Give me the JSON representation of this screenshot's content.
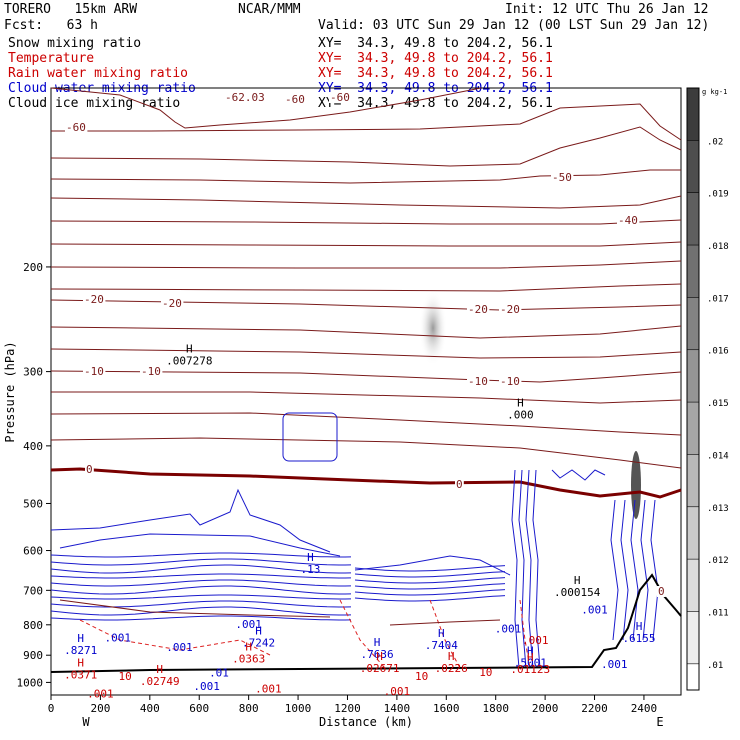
{
  "header": {
    "model": "TORERO   15km ARW",
    "center": "NCAR/MMM",
    "init": "Init: 12 UTC Thu 26 Jan 12",
    "fcst": "Fcst:   63 h",
    "valid": "Valid: 03 UTC Sun 29 Jan 12 (00 LST Sun 29 Jan 12)"
  },
  "legend": [
    {
      "label": "Snow mixing ratio",
      "xy": "XY=  34.3, 49.8 to 204.2, 56.1",
      "color": "#000000"
    },
    {
      "label": "Temperature",
      "xy": "XY=  34.3, 49.8 to 204.2, 56.1",
      "color": "#cc0000"
    },
    {
      "label": "Rain water mixing ratio",
      "xy": "XY=  34.3, 49.8 to 204.2, 56.1",
      "color": "#cc0000"
    },
    {
      "label": "Cloud water mixing ratio",
      "xy": "XY=  34.3, 49.8 to 204.2, 56.1",
      "color": "#0000cc"
    },
    {
      "label": "Cloud ice mixing ratio",
      "xy": "XY=  34.3, 49.8 to 204.2, 56.1",
      "color": "#000000"
    }
  ],
  "colors": {
    "temperature": "#7a1a1a",
    "freezing": "#7a0000",
    "rain": "#dd2222",
    "cloud_water": "#1a1acc",
    "terrain": "#000000"
  },
  "chart_data": {
    "type": "cross-section",
    "xlabel": "Distance (km)",
    "ylabel": "Pressure (hPa)",
    "xlim": [
      0,
      2550
    ],
    "ylim": [
      1050,
      100
    ],
    "y_log": true,
    "xticks": [
      0,
      200,
      400,
      600,
      800,
      1000,
      1200,
      1400,
      1600,
      1800,
      2000,
      2200,
      2400
    ],
    "yticks": [
      200,
      300,
      400,
      500,
      600,
      700,
      800,
      900,
      1000
    ],
    "west_label": "W",
    "east_label": "E",
    "colorbar": {
      "unit": "g kg-1",
      "ticks": [
        ".02",
        ".019",
        ".018",
        ".017",
        ".016",
        ".015",
        ".014",
        ".013",
        ".012",
        ".011",
        ".01"
      ]
    },
    "temperature_contours": [
      {
        "level": -62.03,
        "label": "-62.03"
      },
      {
        "level": -60,
        "label": "-60"
      },
      {
        "level": -50,
        "label": "-50"
      },
      {
        "level": -40,
        "label": "-40"
      },
      {
        "level": -20,
        "label": "-20"
      },
      {
        "level": -10,
        "label": "-10"
      },
      {
        "level": 0,
        "label": "0"
      },
      {
        "level": 10,
        "label": "10"
      }
    ],
    "extrema": [
      {
        "sym": "H",
        "value": ".007278",
        "x": 560,
        "p": 292,
        "color": "#000000"
      },
      {
        "sym": "H",
        "value": ".000",
        "x": 1900,
        "p": 360,
        "color": "#000000"
      },
      {
        "sym": "H",
        "value": ".13",
        "x": 1050,
        "p": 655,
        "color": "#0000cc"
      },
      {
        "sym": "H",
        "value": ".000154",
        "x": 2130,
        "p": 715,
        "color": "#000000"
      },
      {
        "sym": "H",
        "value": ".8271",
        "x": 120,
        "p": 895,
        "color": "#0000cc"
      },
      {
        "sym": "H",
        "value": ".7242",
        "x": 840,
        "p": 870,
        "color": "#0000cc"
      },
      {
        "sym": "H",
        "value": ".7636",
        "x": 1320,
        "p": 910,
        "color": "#0000cc"
      },
      {
        "sym": "H",
        "value": ".7404",
        "x": 1580,
        "p": 878,
        "color": "#0000cc"
      },
      {
        "sym": "H",
        "value": ".5001",
        "x": 1940,
        "p": 940,
        "color": "#0000cc"
      },
      {
        "sym": "H",
        "value": ".6155",
        "x": 2380,
        "p": 855,
        "color": "#0000cc"
      },
      {
        "sym": "H",
        "value": ".0371",
        "x": 120,
        "p": 985,
        "color": "#cc0000"
      },
      {
        "sym": "H",
        "value": ".0363",
        "x": 800,
        "p": 925,
        "color": "#cc0000"
      },
      {
        "sym": "H",
        "value": ".02749",
        "x": 440,
        "p": 1010,
        "color": "#cc0000"
      },
      {
        "sym": "H",
        "value": ".02671",
        "x": 1330,
        "p": 960,
        "color": "#cc0000"
      },
      {
        "sym": "H",
        "value": ".0226",
        "x": 1620,
        "p": 960,
        "color": "#cc0000"
      },
      {
        "sym": "H",
        "value": ".01123",
        "x": 1940,
        "p": 965,
        "color": "#cc0000"
      },
      {
        "sym": "",
        "value": ".001",
        "x": 800,
        "p": 810,
        "color": "#0000cc"
      },
      {
        "sym": "",
        "value": ".001",
        "x": 270,
        "p": 853,
        "color": "#0000cc"
      },
      {
        "sym": "",
        "value": ".001",
        "x": 520,
        "p": 885,
        "color": "#0000cc"
      },
      {
        "sym": "",
        "value": ".001",
        "x": 1850,
        "p": 825,
        "color": "#0000cc"
      },
      {
        "sym": "",
        "value": ".001",
        "x": 2200,
        "p": 765,
        "color": "#0000cc"
      },
      {
        "sym": "",
        "value": ".001",
        "x": 2280,
        "p": 945,
        "color": "#0000cc"
      },
      {
        "sym": "",
        "value": ".001",
        "x": 630,
        "p": 1030,
        "color": "#0000cc"
      },
      {
        "sym": "",
        "value": ".001",
        "x": 1960,
        "p": 862,
        "color": "#cc0000"
      },
      {
        "sym": "",
        "value": ".001",
        "x": 880,
        "p": 1040,
        "color": "#cc0000"
      },
      {
        "sym": "",
        "value": ".001",
        "x": 1400,
        "p": 1050,
        "color": "#cc0000"
      },
      {
        "sym": "",
        "value": ".001",
        "x": 200,
        "p": 1060,
        "color": "#cc0000"
      },
      {
        "sym": "",
        "value": ".01",
        "x": 680,
        "p": 978,
        "color": "#0000cc"
      },
      {
        "sym": "",
        "value": "10",
        "x": 300,
        "p": 990,
        "color": "#cc0000"
      },
      {
        "sym": "",
        "value": "10",
        "x": 1500,
        "p": 990,
        "color": "#cc0000"
      },
      {
        "sym": "",
        "value": "10",
        "x": 1760,
        "p": 975,
        "color": "#cc0000"
      }
    ]
  }
}
